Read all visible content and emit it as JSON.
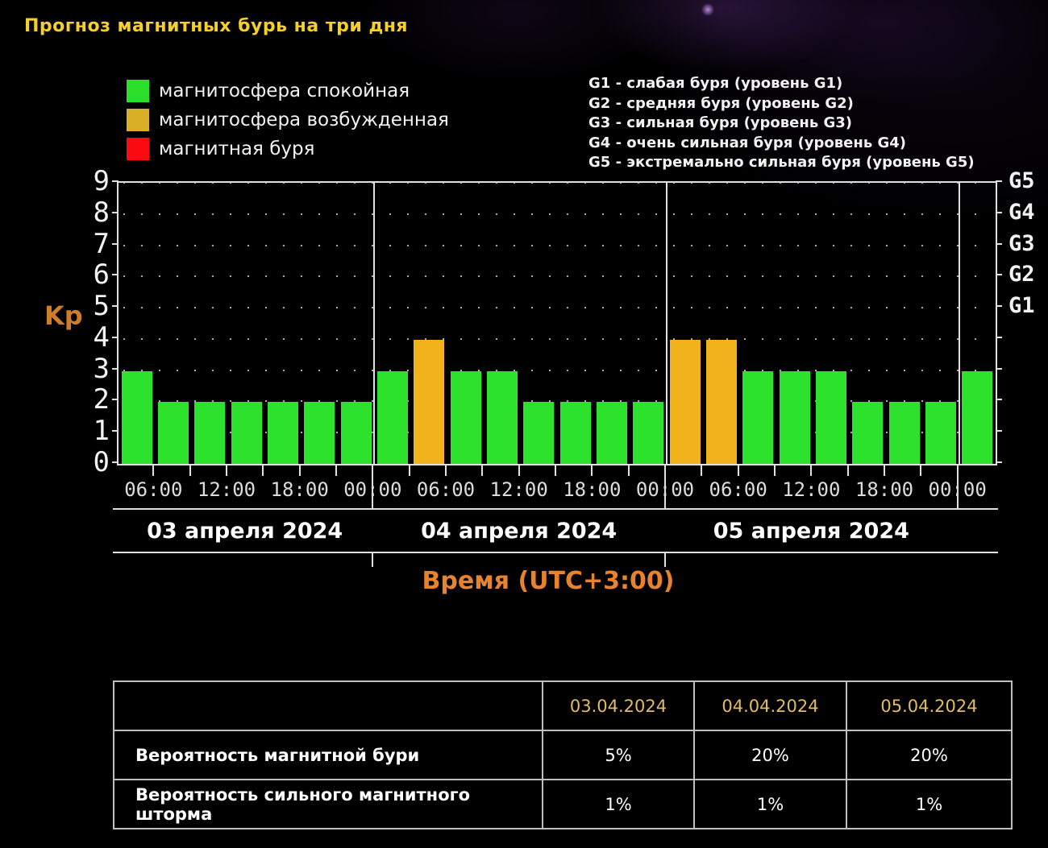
{
  "title": "Прогноз магнитных бурь на три дня",
  "legend": {
    "items": [
      {
        "name": "quiet",
        "label": "магнитосфера спокойная",
        "color": "#2ade2a"
      },
      {
        "name": "excited",
        "label": "магнитосфера возбужденная",
        "color": "#d9af25"
      },
      {
        "name": "storm",
        "label": "магнитная буря",
        "color": "#fb0a10"
      }
    ]
  },
  "storm_scale": [
    "G1 - слабая буря (уровень G1)",
    "G2 - средняя буря (уровень G2)",
    "G3 - сильная буря (уровень G3)",
    "G4 - очень сильная буря (уровень G4)",
    "G5 - экстремально сильная буря (уровень G5)"
  ],
  "chart_data": {
    "type": "bar",
    "ylabel": "Kp",
    "xlabel": "Время (UTC+3:00)",
    "ylim": [
      0,
      9
    ],
    "y_ticks": [
      0,
      1,
      2,
      3,
      4,
      5,
      6,
      7,
      8,
      9
    ],
    "right_axis_labels": [
      {
        "label": "G1",
        "kp": 5
      },
      {
        "label": "G2",
        "kp": 6
      },
      {
        "label": "G3",
        "kp": 7
      },
      {
        "label": "G4",
        "kp": 8
      },
      {
        "label": "G5",
        "kp": 9
      }
    ],
    "grid": "dotted",
    "legend_position": "top",
    "interval_hours": 3,
    "bar_colors": {
      "quiet": "#2ce22c",
      "excited": "#f2b21c",
      "storm": "#ff1010"
    },
    "x_tick_labels_per_day": [
      "06:00",
      "12:00",
      "18:00",
      "00:00"
    ],
    "days": [
      {
        "date": "03 апреля 2024",
        "bars": [
          {
            "time": "03:00",
            "kp": 3,
            "state": "quiet"
          },
          {
            "time": "06:00",
            "kp": 2,
            "state": "quiet"
          },
          {
            "time": "09:00",
            "kp": 2,
            "state": "quiet"
          },
          {
            "time": "12:00",
            "kp": 2,
            "state": "quiet"
          },
          {
            "time": "15:00",
            "kp": 2,
            "state": "quiet"
          },
          {
            "time": "18:00",
            "kp": 2,
            "state": "quiet"
          },
          {
            "time": "21:00",
            "kp": 2,
            "state": "quiet"
          }
        ]
      },
      {
        "date": "04 апреля 2024",
        "bars": [
          {
            "time": "00:00",
            "kp": 3,
            "state": "quiet"
          },
          {
            "time": "03:00",
            "kp": 4,
            "state": "excited"
          },
          {
            "time": "06:00",
            "kp": 3,
            "state": "quiet"
          },
          {
            "time": "09:00",
            "kp": 3,
            "state": "quiet"
          },
          {
            "time": "12:00",
            "kp": 2,
            "state": "quiet"
          },
          {
            "time": "15:00",
            "kp": 2,
            "state": "quiet"
          },
          {
            "time": "18:00",
            "kp": 2,
            "state": "quiet"
          },
          {
            "time": "21:00",
            "kp": 2,
            "state": "quiet"
          }
        ]
      },
      {
        "date": "05 апреля 2024",
        "bars": [
          {
            "time": "00:00",
            "kp": 4,
            "state": "excited"
          },
          {
            "time": "03:00",
            "kp": 4,
            "state": "excited"
          },
          {
            "time": "06:00",
            "kp": 3,
            "state": "quiet"
          },
          {
            "time": "09:00",
            "kp": 3,
            "state": "quiet"
          },
          {
            "time": "12:00",
            "kp": 3,
            "state": "quiet"
          },
          {
            "time": "15:00",
            "kp": 2,
            "state": "quiet"
          },
          {
            "time": "18:00",
            "kp": 2,
            "state": "quiet"
          },
          {
            "time": "21:00",
            "kp": 2,
            "state": "quiet"
          }
        ]
      }
    ],
    "overflow_bars": [
      {
        "time": "00:00",
        "kp": 3,
        "state": "quiet"
      }
    ]
  },
  "table": {
    "header": [
      "",
      "03.04.2024",
      "04.04.2024",
      "05.04.2024"
    ],
    "rows": [
      {
        "label": "Вероятность магнитной бури",
        "values": [
          "5%",
          "20%",
          "20%"
        ]
      },
      {
        "label": "Вероятность сильного магнитного шторма",
        "values": [
          "1%",
          "1%",
          "1%"
        ]
      }
    ]
  }
}
